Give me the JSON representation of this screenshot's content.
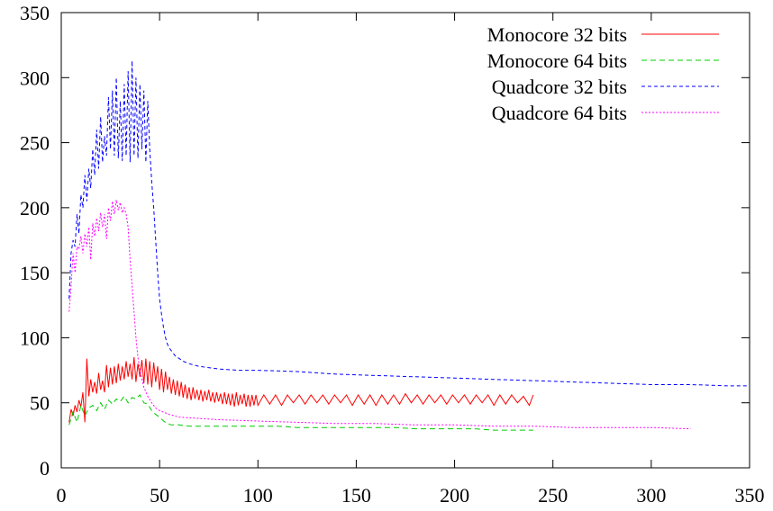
{
  "chart_data": {
    "type": "line",
    "title": "",
    "xlabel": "",
    "ylabel": "",
    "xlim": [
      0,
      350
    ],
    "ylim": [
      0,
      350
    ],
    "xticks": [
      0,
      50,
      100,
      150,
      200,
      250,
      300,
      350
    ],
    "yticks": [
      0,
      50,
      100,
      150,
      200,
      250,
      300,
      350
    ],
    "grid": false,
    "legend_position": "top-right",
    "series": [
      {
        "name": "Monocore 32 bits",
        "color": "#ff0000",
        "dash": "solid",
        "x": [
          4,
          5,
          6,
          7,
          8,
          9,
          10,
          11,
          12,
          13,
          14,
          15,
          16,
          17,
          18,
          19,
          20,
          21,
          22,
          23,
          24,
          25,
          26,
          27,
          28,
          29,
          30,
          31,
          32,
          33,
          34,
          35,
          36,
          37,
          38,
          39,
          40,
          41,
          42,
          43,
          44,
          45,
          46,
          47,
          48,
          49,
          50,
          51,
          52,
          53,
          54,
          55,
          56,
          57,
          58,
          59,
          60,
          61,
          62,
          63,
          64,
          65,
          66,
          67,
          68,
          69,
          70,
          71,
          72,
          73,
          74,
          75,
          76,
          77,
          78,
          79,
          80,
          81,
          82,
          83,
          84,
          85,
          86,
          87,
          88,
          89,
          90,
          91,
          92,
          93,
          94,
          95,
          96,
          97,
          98,
          99,
          100,
          103,
          106,
          109,
          112,
          115,
          118,
          121,
          124,
          127,
          130,
          133,
          136,
          139,
          142,
          145,
          148,
          151,
          154,
          157,
          160,
          163,
          166,
          169,
          172,
          175,
          178,
          181,
          184,
          187,
          190,
          193,
          196,
          199,
          202,
          205,
          208,
          211,
          214,
          217,
          220,
          223,
          226,
          229,
          232,
          235,
          238,
          240
        ],
        "y": [
          35,
          45,
          40,
          48,
          43,
          52,
          47,
          58,
          35,
          84,
          55,
          68,
          58,
          66,
          57,
          73,
          60,
          67,
          58,
          79,
          62,
          77,
          64,
          78,
          65,
          80,
          67,
          78,
          68,
          82,
          70,
          80,
          68,
          85,
          66,
          80,
          70,
          83,
          65,
          84,
          64,
          82,
          62,
          81,
          66,
          78,
          60,
          76,
          58,
          74,
          60,
          70,
          57,
          68,
          56,
          67,
          55,
          66,
          54,
          64,
          53,
          62,
          52,
          62,
          53,
          60,
          52,
          60,
          51,
          59,
          52,
          60,
          51,
          58,
          50,
          58,
          51,
          57,
          49,
          58,
          49,
          57,
          48,
          57,
          47,
          58,
          48,
          56,
          49,
          57,
          47,
          56,
          47,
          56,
          48,
          56,
          48,
          56,
          49,
          56,
          48,
          56,
          50,
          56,
          49,
          56,
          50,
          56,
          49,
          56,
          50,
          56,
          48,
          56,
          49,
          56,
          48,
          56,
          49,
          56,
          49,
          57,
          50,
          56,
          49,
          56,
          50,
          56,
          49,
          56,
          50,
          56,
          49,
          56,
          50,
          56,
          48,
          56,
          49,
          56,
          50,
          55,
          48,
          56
        ]
      },
      {
        "name": "Monocore 64 bits",
        "color": "#00cc00",
        "dash": "6,4",
        "x": [
          4,
          6,
          8,
          10,
          12,
          14,
          16,
          18,
          20,
          22,
          24,
          26,
          28,
          30,
          32,
          34,
          36,
          38,
          40,
          42,
          44,
          46,
          48,
          50,
          52,
          54,
          56,
          60,
          65,
          70,
          80,
          90,
          100,
          110,
          120,
          130,
          140,
          150,
          160,
          170,
          180,
          190,
          200,
          210,
          220,
          230,
          240
        ],
        "y": [
          33,
          43,
          35,
          48,
          40,
          46,
          48,
          44,
          50,
          45,
          52,
          49,
          53,
          51,
          55,
          50,
          54,
          53,
          56,
          50,
          49,
          44,
          41,
          39,
          36,
          34,
          33,
          33,
          32,
          32,
          32,
          32,
          32,
          32,
          31,
          31,
          31,
          31,
          31,
          31,
          30,
          30,
          30,
          30,
          29,
          29,
          29
        ]
      },
      {
        "name": "Quadcore 32 bits",
        "color": "#0000ff",
        "dash": "4,3",
        "x": [
          4,
          5,
          6,
          7,
          8,
          9,
          10,
          11,
          12,
          13,
          14,
          15,
          16,
          17,
          18,
          19,
          20,
          21,
          22,
          23,
          24,
          25,
          26,
          27,
          28,
          29,
          30,
          31,
          32,
          33,
          34,
          35,
          36,
          37,
          38,
          39,
          40,
          41,
          42,
          43,
          44,
          45,
          46,
          47,
          48,
          49,
          50,
          51,
          52,
          53,
          54,
          55,
          56,
          58,
          60,
          62,
          65,
          70,
          80,
          90,
          100,
          120,
          140,
          160,
          180,
          200,
          220,
          240,
          260,
          280,
          300,
          320,
          340,
          350
        ],
        "y": [
          130,
          165,
          175,
          170,
          195,
          180,
          210,
          200,
          225,
          205,
          230,
          215,
          245,
          225,
          260,
          230,
          270,
          235,
          255,
          240,
          285,
          245,
          290,
          240,
          300,
          238,
          282,
          236,
          295,
          240,
          305,
          235,
          313,
          240,
          300,
          238,
          295,
          245,
          290,
          235,
          282,
          245,
          220,
          200,
          175,
          150,
          130,
          118,
          108,
          100,
          95,
          92,
          90,
          86,
          84,
          82,
          80,
          78,
          76,
          75,
          75,
          74,
          72,
          71,
          70,
          69,
          68,
          67,
          66,
          65,
          64,
          64,
          63,
          63
        ]
      },
      {
        "name": "Quadcore 64 bits",
        "color": "#ff00ff",
        "dash": "2,2",
        "x": [
          4,
          5,
          6,
          7,
          8,
          9,
          10,
          11,
          12,
          13,
          14,
          15,
          16,
          17,
          18,
          19,
          20,
          21,
          22,
          23,
          24,
          25,
          26,
          27,
          28,
          29,
          30,
          31,
          32,
          33,
          34,
          35,
          36,
          37,
          38,
          39,
          40,
          42,
          44,
          46,
          48,
          50,
          55,
          60,
          70,
          80,
          100,
          120,
          140,
          160,
          180,
          200,
          220,
          240,
          260,
          280,
          300,
          320
        ],
        "y": [
          120,
          140,
          165,
          150,
          170,
          168,
          178,
          165,
          180,
          170,
          185,
          160,
          188,
          178,
          192,
          182,
          196,
          185,
          195,
          176,
          200,
          190,
          205,
          195,
          206,
          198,
          204,
          196,
          200,
          195,
          185,
          160,
          140,
          120,
          100,
          85,
          75,
          62,
          55,
          50,
          46,
          44,
          41,
          39,
          38,
          37,
          36,
          35,
          34,
          34,
          33,
          33,
          32,
          32,
          31,
          31,
          31,
          30
        ]
      }
    ]
  }
}
